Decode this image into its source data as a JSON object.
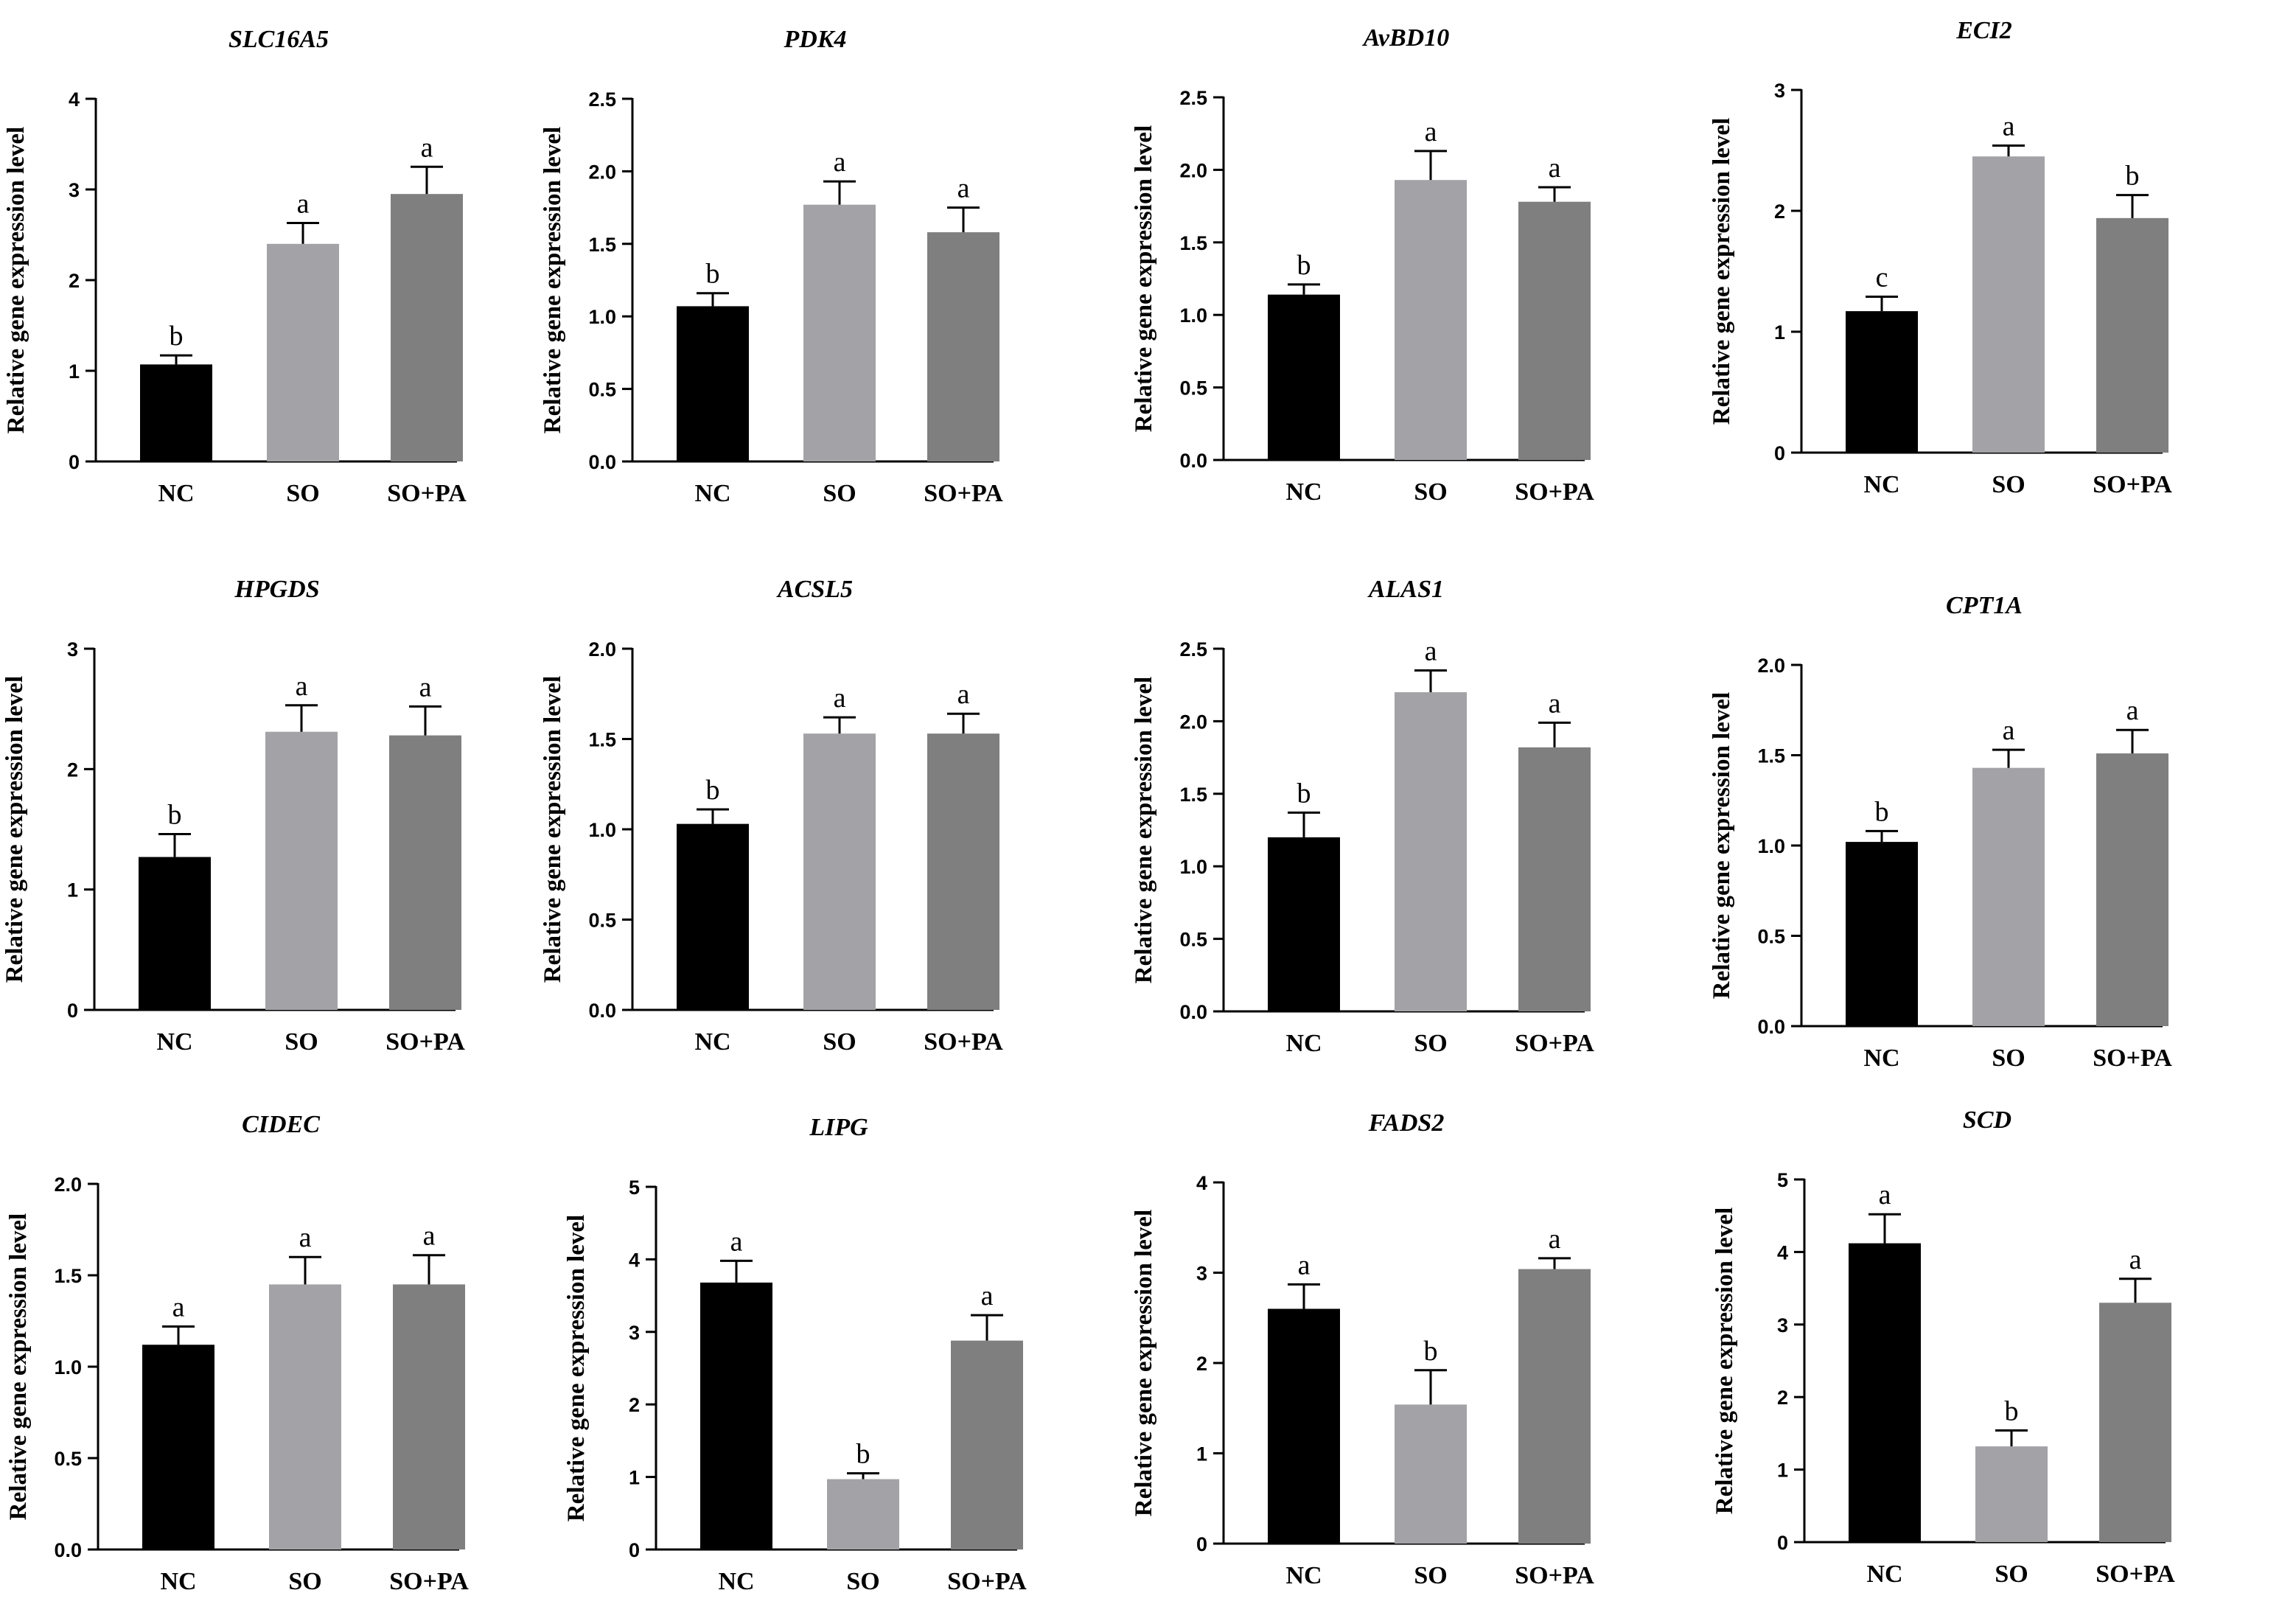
{
  "chart_data": [
    {
      "type": "bar",
      "title": "SLC16A5",
      "ylabel": "Relative gene expression level",
      "categories": [
        "NC",
        "SO",
        "SO+PA"
      ],
      "ylim": [
        0,
        4
      ],
      "yticks": [
        "0",
        "1",
        "2",
        "3",
        "4"
      ],
      "values": [
        1.07,
        2.4,
        2.95
      ],
      "errors": [
        0.1,
        0.23,
        0.3
      ],
      "letters": [
        "b",
        "a",
        "a"
      ],
      "colors": [
        "#000000",
        "#a3a3a7",
        "#7f7f7f"
      ]
    },
    {
      "type": "bar",
      "title": "PDK4",
      "ylabel": "Relative gene expression level",
      "categories": [
        "NC",
        "SO",
        "SO+PA"
      ],
      "ylim": [
        0,
        2.5
      ],
      "yticks": [
        "0.0",
        "0.5",
        "1.0",
        "1.5",
        "2.0",
        "2.5"
      ],
      "values": [
        1.07,
        1.77,
        1.58
      ],
      "errors": [
        0.09,
        0.16,
        0.17
      ],
      "letters": [
        "b",
        "a",
        "a"
      ],
      "colors": [
        "#000000",
        "#a3a3a7",
        "#7f7f7f"
      ]
    },
    {
      "type": "bar",
      "title": "AvBD10",
      "ylabel": "Relative gene expression level",
      "categories": [
        "NC",
        "SO",
        "SO+PA"
      ],
      "ylim": [
        0,
        2.5
      ],
      "yticks": [
        "0.0",
        "0.5",
        "1.0",
        "1.5",
        "2.0",
        "2.5"
      ],
      "values": [
        1.14,
        1.93,
        1.78
      ],
      "errors": [
        0.07,
        0.2,
        0.1
      ],
      "letters": [
        "b",
        "a",
        "a"
      ],
      "colors": [
        "#000000",
        "#a3a3a7",
        "#7f7f7f"
      ]
    },
    {
      "type": "bar",
      "title": "ECI2",
      "ylabel": "Relative gene expression level",
      "categories": [
        "NC",
        "SO",
        "SO+PA"
      ],
      "ylim": [
        0,
        3
      ],
      "yticks": [
        "0",
        "1",
        "2",
        "3"
      ],
      "values": [
        1.17,
        2.45,
        1.94
      ],
      "errors": [
        0.12,
        0.09,
        0.19
      ],
      "letters": [
        "c",
        "a",
        "b"
      ],
      "colors": [
        "#000000",
        "#a3a3a7",
        "#7f7f7f"
      ]
    },
    {
      "type": "bar",
      "title": "HPGDS",
      "ylabel": "Relative gene expression level",
      "categories": [
        "NC",
        "SO",
        "SO+PA"
      ],
      "ylim": [
        0,
        3
      ],
      "yticks": [
        "0",
        "1",
        "2",
        "3"
      ],
      "values": [
        1.27,
        2.31,
        2.28
      ],
      "errors": [
        0.19,
        0.22,
        0.24
      ],
      "letters": [
        "b",
        "a",
        "a"
      ],
      "colors": [
        "#000000",
        "#a3a3a7",
        "#7f7f7f"
      ]
    },
    {
      "type": "bar",
      "title": "ACSL5",
      "ylabel": "Relative gene expression level",
      "categories": [
        "NC",
        "SO",
        "SO+PA"
      ],
      "ylim": [
        0,
        2
      ],
      "yticks": [
        "0.0",
        "0.5",
        "1.0",
        "1.5",
        "2.0"
      ],
      "values": [
        1.03,
        1.53,
        1.53
      ],
      "errors": [
        0.08,
        0.09,
        0.11
      ],
      "letters": [
        "b",
        "a",
        "a"
      ],
      "colors": [
        "#000000",
        "#a3a3a7",
        "#7f7f7f"
      ]
    },
    {
      "type": "bar",
      "title": "ALAS1",
      "ylabel": "Relative gene expression level",
      "categories": [
        "NC",
        "SO",
        "SO+PA"
      ],
      "ylim": [
        0,
        2.5
      ],
      "yticks": [
        "0.0",
        "0.5",
        "1.0",
        "1.5",
        "2.0",
        "2.5"
      ],
      "values": [
        1.2,
        2.2,
        1.82
      ],
      "errors": [
        0.17,
        0.15,
        0.17
      ],
      "letters": [
        "b",
        "a",
        "a"
      ],
      "colors": [
        "#000000",
        "#a3a3a7",
        "#7f7f7f"
      ]
    },
    {
      "type": "bar",
      "title": "CPT1A",
      "ylabel": "Relative gene expression level",
      "categories": [
        "NC",
        "SO",
        "SO+PA"
      ],
      "ylim": [
        0,
        2
      ],
      "yticks": [
        "0.0",
        "0.5",
        "1.0",
        "1.5",
        "2.0"
      ],
      "values": [
        1.02,
        1.43,
        1.51
      ],
      "errors": [
        0.06,
        0.1,
        0.13
      ],
      "letters": [
        "b",
        "a",
        "a"
      ],
      "colors": [
        "#000000",
        "#a3a3a7",
        "#7f7f7f"
      ]
    },
    {
      "type": "bar",
      "title": "CIDEC",
      "ylabel": "Relative gene expression level",
      "categories": [
        "NC",
        "SO",
        "SO+PA"
      ],
      "ylim": [
        0,
        2
      ],
      "yticks": [
        "0.0",
        "0.5",
        "1.0",
        "1.5",
        "2.0"
      ],
      "values": [
        1.12,
        1.45,
        1.45
      ],
      "errors": [
        0.1,
        0.15,
        0.16
      ],
      "letters": [
        "a",
        "a",
        "a"
      ],
      "colors": [
        "#000000",
        "#a3a3a7",
        "#7f7f7f"
      ]
    },
    {
      "type": "bar",
      "title": "LIPG",
      "ylabel": "Relative gene expression level",
      "categories": [
        "NC",
        "SO",
        "SO+PA"
      ],
      "ylim": [
        0,
        5
      ],
      "yticks": [
        "0",
        "1",
        "2",
        "3",
        "4",
        "5"
      ],
      "values": [
        3.68,
        0.97,
        2.88
      ],
      "errors": [
        0.3,
        0.08,
        0.35
      ],
      "letters": [
        "a",
        "b",
        "a"
      ],
      "colors": [
        "#000000",
        "#a3a3a7",
        "#7f7f7f"
      ]
    },
    {
      "type": "bar",
      "title": "FADS2",
      "ylabel": "Relative gene expression level",
      "categories": [
        "NC",
        "SO",
        "SO+PA"
      ],
      "ylim": [
        0,
        4
      ],
      "yticks": [
        "0",
        "1",
        "2",
        "3",
        "4"
      ],
      "values": [
        2.6,
        1.54,
        3.04
      ],
      "errors": [
        0.27,
        0.38,
        0.12
      ],
      "letters": [
        "a",
        "b",
        "a"
      ],
      "colors": [
        "#000000",
        "#a3a3a7",
        "#7f7f7f"
      ]
    },
    {
      "type": "bar",
      "title": "SCD",
      "ylabel": "Relative gene expression level",
      "categories": [
        "NC",
        "SO",
        "SO+PA"
      ],
      "ylim": [
        0,
        5
      ],
      "yticks": [
        "0",
        "1",
        "2",
        "3",
        "4",
        "5"
      ],
      "values": [
        4.12,
        1.32,
        3.3
      ],
      "errors": [
        0.4,
        0.22,
        0.33
      ],
      "letters": [
        "a",
        "b",
        "a"
      ],
      "colors": [
        "#000000",
        "#a3a3a7",
        "#7f7f7f"
      ]
    }
  ]
}
